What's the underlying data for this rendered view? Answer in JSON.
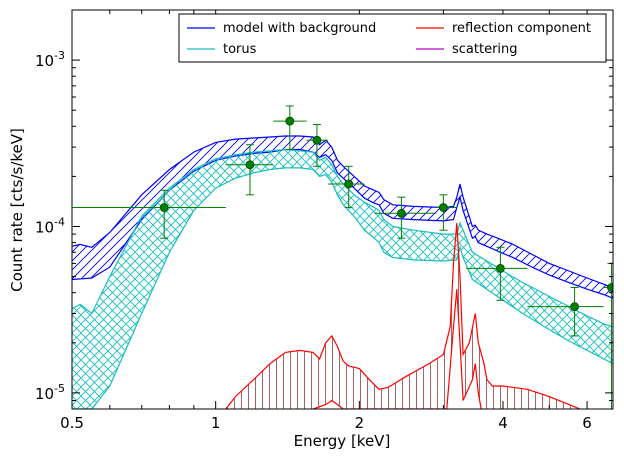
{
  "chart_data": {
    "type": "line",
    "xlabel": "Energy [keV]",
    "ylabel": "Count rate [cts/s/keV]",
    "x_scale": "log",
    "y_scale": "log",
    "xlim": [
      0.5,
      6.8
    ],
    "ylim": [
      8e-06,
      0.002
    ],
    "x_ticks": [
      {
        "value": 0.5,
        "label": "0.5"
      },
      {
        "value": 1,
        "label": "1"
      },
      {
        "value": 2,
        "label": "2"
      },
      {
        "value": 4,
        "label": "4"
      },
      {
        "value": 6,
        "label": "6"
      }
    ],
    "y_ticks": [
      {
        "value": 1e-05,
        "base": "10",
        "exp": "-5"
      },
      {
        "value": 0.0001,
        "base": "10",
        "exp": "-4"
      },
      {
        "value": 0.001,
        "base": "10",
        "exp": "-3"
      }
    ],
    "legend": {
      "placement": "top-right",
      "entries": [
        {
          "label": "model with background",
          "color": "#0000ff"
        },
        {
          "label": "reflection component",
          "color": "#ff0000"
        },
        {
          "label": "torus",
          "color": "#17bebe"
        },
        {
          "label": "scattering",
          "color": "#bf00bf"
        }
      ]
    },
    "series": [
      {
        "name": "model with background",
        "color": "#0000ff",
        "hatch": "diagonal",
        "upper": [
          [
            0.5,
            7.6e-05
          ],
          [
            0.52,
            7.8e-05
          ],
          [
            0.55,
            7.5e-05
          ],
          [
            0.6,
            9.2e-05
          ],
          [
            0.7,
            0.000155
          ],
          [
            0.8,
            0.00022
          ],
          [
            0.9,
            0.00028
          ],
          [
            1.0,
            0.00032
          ],
          [
            1.1,
            0.000335
          ],
          [
            1.2,
            0.00034
          ],
          [
            1.3,
            0.000345
          ],
          [
            1.4,
            0.00035
          ],
          [
            1.5,
            0.00035
          ],
          [
            1.6,
            0.000345
          ],
          [
            1.65,
            0.00031
          ],
          [
            1.7,
            0.00033
          ],
          [
            1.75,
            0.0003
          ],
          [
            1.8,
            0.00025
          ],
          [
            1.85,
            0.00023
          ],
          [
            1.95,
            0.0002
          ],
          [
            2.05,
            0.000175
          ],
          [
            2.15,
            0.000165
          ],
          [
            2.2,
            0.00016
          ],
          [
            2.25,
            0.000145
          ],
          [
            2.35,
            0.000135
          ],
          [
            2.6,
            0.000132
          ],
          [
            3.0,
            0.00013
          ],
          [
            3.15,
            0.000132
          ],
          [
            3.2,
            0.00015
          ],
          [
            3.25,
            0.00018
          ],
          [
            3.3,
            0.00015
          ],
          [
            3.45,
            0.0001
          ],
          [
            3.5,
            0.000102
          ],
          [
            3.55,
            9.5e-05
          ],
          [
            3.7,
            9e-05
          ],
          [
            3.9,
            8.5e-05
          ],
          [
            4.2,
            7.8e-05
          ],
          [
            4.6,
            6.8e-05
          ],
          [
            5.0,
            6e-05
          ],
          [
            5.5,
            5.4e-05
          ],
          [
            6.0,
            4.9e-05
          ],
          [
            6.5,
            4.5e-05
          ],
          [
            6.8,
            4.3e-05
          ]
        ],
        "lower": [
          [
            0.5,
            4.8e-05
          ],
          [
            0.55,
            4.9e-05
          ],
          [
            0.6,
            5.7e-05
          ],
          [
            0.7,
            0.00011
          ],
          [
            0.8,
            0.000165
          ],
          [
            0.9,
            0.000215
          ],
          [
            1.0,
            0.00025
          ],
          [
            1.1,
            0.000265
          ],
          [
            1.2,
            0.000275
          ],
          [
            1.3,
            0.00028
          ],
          [
            1.4,
            0.00029
          ],
          [
            1.5,
            0.00029
          ],
          [
            1.6,
            0.00028
          ],
          [
            1.65,
            0.00026
          ],
          [
            1.7,
            0.00027
          ],
          [
            1.75,
            0.00025
          ],
          [
            1.8,
            0.00021
          ],
          [
            1.85,
            0.000195
          ],
          [
            1.95,
            0.00017
          ],
          [
            2.05,
            0.000148
          ],
          [
            2.15,
            0.000138
          ],
          [
            2.2,
            0.000135
          ],
          [
            2.25,
            0.00012
          ],
          [
            2.35,
            0.000112
          ],
          [
            2.6,
            0.00011
          ],
          [
            3.0,
            0.000108
          ],
          [
            3.15,
            0.00011
          ],
          [
            3.2,
            0.00013
          ],
          [
            3.25,
            0.00015
          ],
          [
            3.3,
            0.000125
          ],
          [
            3.45,
            8.5e-05
          ],
          [
            3.5,
            8.7e-05
          ],
          [
            3.55,
            8e-05
          ],
          [
            3.7,
            7.6e-05
          ],
          [
            3.9,
            7.1e-05
          ],
          [
            4.2,
            6.5e-05
          ],
          [
            4.6,
            5.7e-05
          ],
          [
            5.0,
            5.1e-05
          ],
          [
            5.5,
            4.6e-05
          ],
          [
            6.0,
            4.2e-05
          ],
          [
            6.5,
            3.9e-05
          ],
          [
            6.8,
            3.7e-05
          ]
        ]
      },
      {
        "name": "torus",
        "color": "#17bebe",
        "hatch": "cross",
        "upper": [
          [
            0.5,
            3.2e-05
          ],
          [
            0.52,
            3.4e-05
          ],
          [
            0.55,
            3e-05
          ],
          [
            0.6,
            5e-05
          ],
          [
            0.7,
            0.000115
          ],
          [
            0.8,
            0.00017
          ],
          [
            0.9,
            0.00022
          ],
          [
            1.0,
            0.000255
          ],
          [
            1.1,
            0.00027
          ],
          [
            1.2,
            0.00028
          ],
          [
            1.3,
            0.000285
          ],
          [
            1.4,
            0.00029
          ],
          [
            1.5,
            0.000285
          ],
          [
            1.6,
            0.00028
          ],
          [
            1.65,
            0.00025
          ],
          [
            1.7,
            0.00026
          ],
          [
            1.75,
            0.000235
          ],
          [
            1.8,
            0.0002
          ],
          [
            1.85,
            0.00018
          ],
          [
            1.95,
            0.000155
          ],
          [
            2.05,
            0.00014
          ],
          [
            2.15,
            0.00013
          ],
          [
            2.2,
            0.000125
          ],
          [
            2.25,
            0.00011
          ],
          [
            2.35,
            0.0001
          ],
          [
            2.6,
            9.5e-05
          ],
          [
            3.0,
            9e-05
          ],
          [
            3.2,
            9e-05
          ],
          [
            3.25,
            0.000105
          ],
          [
            3.3,
            9.5e-05
          ],
          [
            3.45,
            7e-05
          ],
          [
            3.7,
            6.2e-05
          ],
          [
            4.0,
            5.4e-05
          ],
          [
            4.4,
            4.6e-05
          ],
          [
            5.0,
            3.8e-05
          ],
          [
            5.5,
            3.3e-05
          ],
          [
            6.0,
            2.9e-05
          ],
          [
            6.5,
            2.6e-05
          ],
          [
            6.8,
            2.5e-05
          ]
        ],
        "lower": [
          [
            0.5,
            8e-06
          ],
          [
            0.55,
            8e-06
          ],
          [
            0.6,
            1.1e-05
          ],
          [
            0.7,
            3e-05
          ],
          [
            0.8,
            7e-05
          ],
          [
            0.9,
            0.000125
          ],
          [
            1.0,
            0.00017
          ],
          [
            1.1,
            0.000195
          ],
          [
            1.2,
            0.00021
          ],
          [
            1.3,
            0.00022
          ],
          [
            1.4,
            0.000225
          ],
          [
            1.5,
            0.000225
          ],
          [
            1.6,
            0.00022
          ],
          [
            1.65,
            0.0002
          ],
          [
            1.7,
            0.000205
          ],
          [
            1.75,
            0.000185
          ],
          [
            1.8,
            0.000155
          ],
          [
            1.85,
            0.000135
          ],
          [
            1.95,
            0.000115
          ],
          [
            2.05,
            9.5e-05
          ],
          [
            2.15,
            8.5e-05
          ],
          [
            2.2,
            8e-05
          ],
          [
            2.25,
            7e-05
          ],
          [
            2.35,
            6.5e-05
          ],
          [
            2.6,
            6.3e-05
          ],
          [
            3.0,
            6.2e-05
          ],
          [
            3.2,
            6.3e-05
          ],
          [
            3.25,
            7.5e-05
          ],
          [
            3.3,
            6.5e-05
          ],
          [
            3.45,
            4.8e-05
          ],
          [
            3.7,
            4.2e-05
          ],
          [
            4.0,
            3.6e-05
          ],
          [
            4.4,
            3e-05
          ],
          [
            5.0,
            2.4e-05
          ],
          [
            5.5,
            2.05e-05
          ],
          [
            6.0,
            1.8e-05
          ],
          [
            6.5,
            1.6e-05
          ],
          [
            6.8,
            1.5e-05
          ]
        ]
      },
      {
        "name": "reflection component",
        "color": "#ff0000",
        "hatch": "vertical",
        "upper": [
          [
            1.05,
            8e-06
          ],
          [
            1.1,
            9.5e-06
          ],
          [
            1.2,
            1.2e-05
          ],
          [
            1.3,
            1.5e-05
          ],
          [
            1.4,
            1.75e-05
          ],
          [
            1.5,
            1.8e-05
          ],
          [
            1.6,
            1.75e-05
          ],
          [
            1.65,
            1.6e-05
          ],
          [
            1.7,
            2e-05
          ],
          [
            1.75,
            2.2e-05
          ],
          [
            1.8,
            1.9e-05
          ],
          [
            1.85,
            1.55e-05
          ],
          [
            1.9,
            1.45e-05
          ],
          [
            2.0,
            1.4e-05
          ],
          [
            2.1,
            1.2e-05
          ],
          [
            2.2,
            1.05e-05
          ],
          [
            2.3,
            1.08e-05
          ],
          [
            2.5,
            1.25e-05
          ],
          [
            2.8,
            1.5e-05
          ],
          [
            3.0,
            1.7e-05
          ],
          [
            3.1,
            2.5e-05
          ],
          [
            3.15,
            6e-05
          ],
          [
            3.2,
            0.000105
          ],
          [
            3.25,
            5e-05
          ],
          [
            3.3,
            1.7e-05
          ],
          [
            3.4,
            2e-05
          ],
          [
            3.5,
            3e-05
          ],
          [
            3.55,
            2e-05
          ],
          [
            3.65,
            1.5e-05
          ],
          [
            3.7,
            1.2e-05
          ],
          [
            3.8,
            1.1e-05
          ],
          [
            4.0,
            1.1e-05
          ],
          [
            4.5,
            1.05e-05
          ],
          [
            5.0,
            9.5e-06
          ],
          [
            5.5,
            8.5e-06
          ],
          [
            5.8,
            8e-06
          ]
        ],
        "lower": [
          [
            1.6,
            8e-06
          ],
          [
            1.7,
            8.5e-06
          ],
          [
            1.75,
            9e-06
          ],
          [
            1.8,
            8.5e-06
          ],
          [
            1.85,
            8e-06
          ],
          [
            3.05,
            8e-06
          ],
          [
            3.15,
            2.5e-05
          ],
          [
            3.2,
            4.2e-05
          ],
          [
            3.25,
            2e-05
          ],
          [
            3.3,
            9e-06
          ],
          [
            3.45,
            1.2e-05
          ],
          [
            3.5,
            1.5e-05
          ],
          [
            3.55,
            1e-05
          ],
          [
            3.6,
            8e-06
          ]
        ]
      }
    ],
    "data_points": [
      {
        "x": 0.78,
        "y": 0.00013,
        "xerr": [
          0.5,
          1.05
        ],
        "yerr": [
          8.5e-05,
          0.000165
        ]
      },
      {
        "x": 1.18,
        "y": 0.000235,
        "xerr": [
          1.05,
          1.32
        ],
        "yerr": [
          0.000155,
          0.00031
        ]
      },
      {
        "x": 1.43,
        "y": 0.00043,
        "xerr": [
          1.32,
          1.55
        ],
        "yerr": [
          0.00029,
          0.00053
        ]
      },
      {
        "x": 1.63,
        "y": 0.00033,
        "xerr": [
          1.55,
          1.72
        ],
        "yerr": [
          0.00023,
          0.00041
        ]
      },
      {
        "x": 1.9,
        "y": 0.00018,
        "xerr": [
          1.72,
          2.05
        ],
        "yerr": [
          0.00013,
          0.00023
        ]
      },
      {
        "x": 2.45,
        "y": 0.00012,
        "xerr": [
          2.15,
          2.9
        ],
        "yerr": [
          8.5e-05,
          0.00015
        ]
      },
      {
        "x": 3.0,
        "y": 0.00013,
        "xerr": [
          2.9,
          3.2
        ],
        "yerr": [
          9.5e-05,
          0.000155
        ]
      },
      {
        "x": 3.95,
        "y": 5.6e-05,
        "xerr": [
          3.35,
          4.5
        ],
        "yerr": [
          3.6e-05,
          7.5e-05
        ]
      },
      {
        "x": 5.65,
        "y": 3.3e-05,
        "xerr": [
          4.5,
          6.5
        ],
        "yerr": [
          2.2e-05,
          4.3e-05
        ]
      },
      {
        "x": 6.75,
        "y": 4.3e-05,
        "xerr": [
          6.5,
          6.8
        ],
        "yerr": [
          8e-06,
          6e-05
        ]
      }
    ],
    "data_point_color": "#008000",
    "data_point_edge": "#004000"
  }
}
